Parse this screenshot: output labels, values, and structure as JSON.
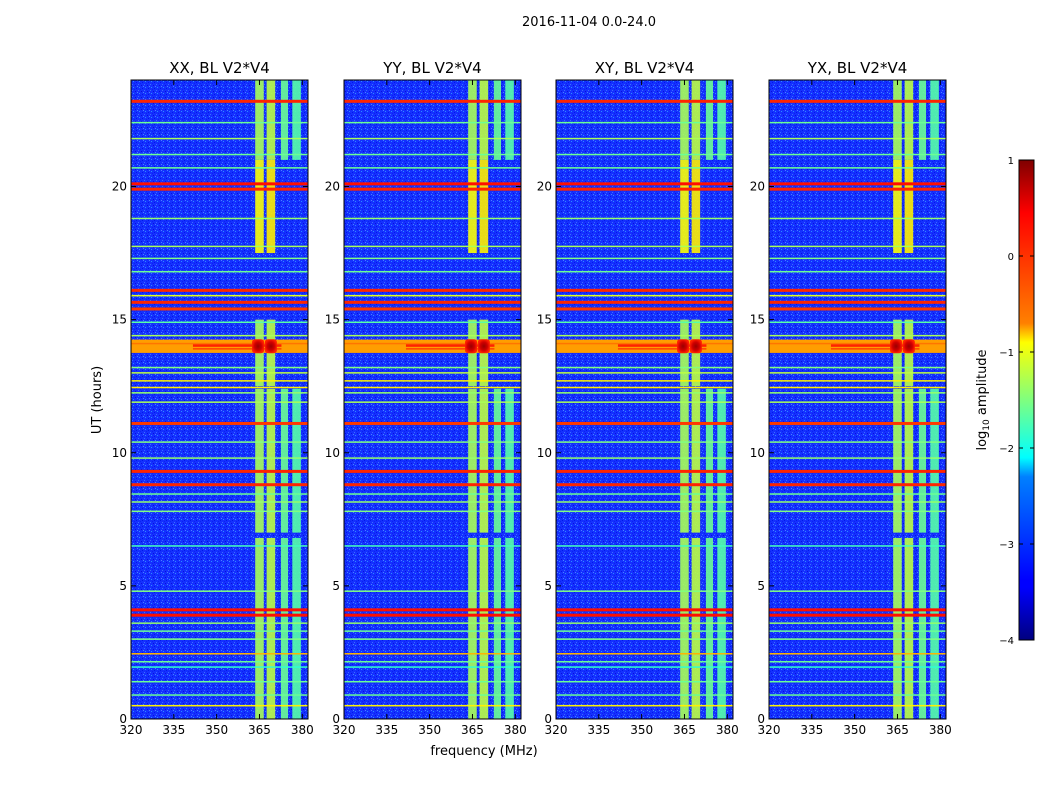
{
  "chart_data": {
    "type": "heatmap",
    "suptitle": "2016-11-04 0.0-24.0",
    "xlabel": "frequency (MHz)",
    "ylabel": "UT (hours)",
    "xlim": [
      320,
      382
    ],
    "ylim": [
      0,
      24
    ],
    "x_ticks": [
      320,
      335,
      350,
      365,
      380
    ],
    "y_ticks": [
      0,
      5,
      10,
      15,
      20
    ],
    "panels": [
      {
        "title": "XX, BL V2*V4",
        "pol": "XX"
      },
      {
        "title": "YY, BL V2*V4",
        "pol": "YY"
      },
      {
        "title": "XY, BL V2*V4",
        "pol": "XY"
      },
      {
        "title": "YX, BL V2*V4",
        "pol": "YX"
      }
    ],
    "colorbar": {
      "label": "log10 amplitude",
      "label_main": "log",
      "label_sub": "10",
      "label_rest": " amplitude",
      "range": [
        -4,
        1
      ],
      "ticks": [
        "1",
        "0",
        "−1",
        "−2",
        "−3",
        "−4"
      ],
      "tick_values": [
        1,
        0,
        -1,
        -2,
        -3,
        -4
      ],
      "colormap": "jet"
    },
    "background_level": -3.2,
    "rfi_bands_mhz": [
      {
        "start": 363.5,
        "end": 366.5,
        "level": -1.3
      },
      {
        "start": 367.5,
        "end": 370.5,
        "level": -1.2
      },
      {
        "start": 372.5,
        "end": 375.0,
        "level": -1.6
      },
      {
        "start": 376.5,
        "end": 379.5,
        "level": -1.7
      }
    ],
    "horizontal_rfi_ut": [
      {
        "t": 0.5,
        "level": -0.8
      },
      {
        "t": 0.9,
        "level": -1.6
      },
      {
        "t": 1.4,
        "level": -1.6
      },
      {
        "t": 1.95,
        "level": -1.9
      },
      {
        "t": 2.15,
        "level": -1.6
      },
      {
        "t": 2.45,
        "level": -0.5
      },
      {
        "t": 3.0,
        "level": -1.5
      },
      {
        "t": 3.3,
        "level": -1.6
      },
      {
        "t": 3.6,
        "level": -1.4
      },
      {
        "t": 3.9,
        "level": 0.3
      },
      {
        "t": 4.1,
        "level": 0.3
      },
      {
        "t": 4.8,
        "level": -1.5
      },
      {
        "t": 6.5,
        "level": -1.8
      },
      {
        "t": 7.8,
        "level": -1.5
      },
      {
        "t": 8.15,
        "level": -1.4
      },
      {
        "t": 8.45,
        "level": -1.6
      },
      {
        "t": 8.8,
        "level": 0.2
      },
      {
        "t": 9.3,
        "level": 0.2
      },
      {
        "t": 9.8,
        "level": -1.4
      },
      {
        "t": 10.4,
        "level": -1.5
      },
      {
        "t": 11.1,
        "level": 0.1
      },
      {
        "t": 11.9,
        "level": -1.3
      },
      {
        "t": 12.25,
        "level": -1.4
      },
      {
        "t": 12.45,
        "level": -0.8
      },
      {
        "t": 12.7,
        "level": -0.8
      },
      {
        "t": 13.0,
        "level": -1.2
      },
      {
        "t": 13.2,
        "level": -1.5
      },
      {
        "t": 13.95,
        "level": -0.4
      },
      {
        "t": 14.1,
        "level": -0.2
      },
      {
        "t": 14.4,
        "level": -1.3
      },
      {
        "t": 14.9,
        "level": -1.7
      },
      {
        "t": 15.4,
        "level": 0.1
      },
      {
        "t": 15.65,
        "level": 0.2
      },
      {
        "t": 15.9,
        "level": -1.0
      },
      {
        "t": 16.1,
        "level": 0.2
      },
      {
        "t": 16.8,
        "level": -1.6
      },
      {
        "t": 17.3,
        "level": -1.5
      },
      {
        "t": 17.75,
        "level": -1.3
      },
      {
        "t": 18.8,
        "level": -1.4
      },
      {
        "t": 19.9,
        "level": 0.2
      },
      {
        "t": 20.1,
        "level": 0.3
      },
      {
        "t": 20.7,
        "level": -1.6
      },
      {
        "t": 21.2,
        "level": -1.6
      },
      {
        "t": 21.8,
        "level": -1.3
      },
      {
        "t": 22.4,
        "level": -1.6
      },
      {
        "t": 23.2,
        "level": 0.2
      }
    ],
    "hotspots": [
      {
        "f": 364.5,
        "t": 14.0,
        "level": 0.7
      },
      {
        "f": 369.0,
        "t": 14.0,
        "level": 0.7
      }
    ],
    "broadband_band": {
      "t": 14.0,
      "level": 0.2
    }
  }
}
